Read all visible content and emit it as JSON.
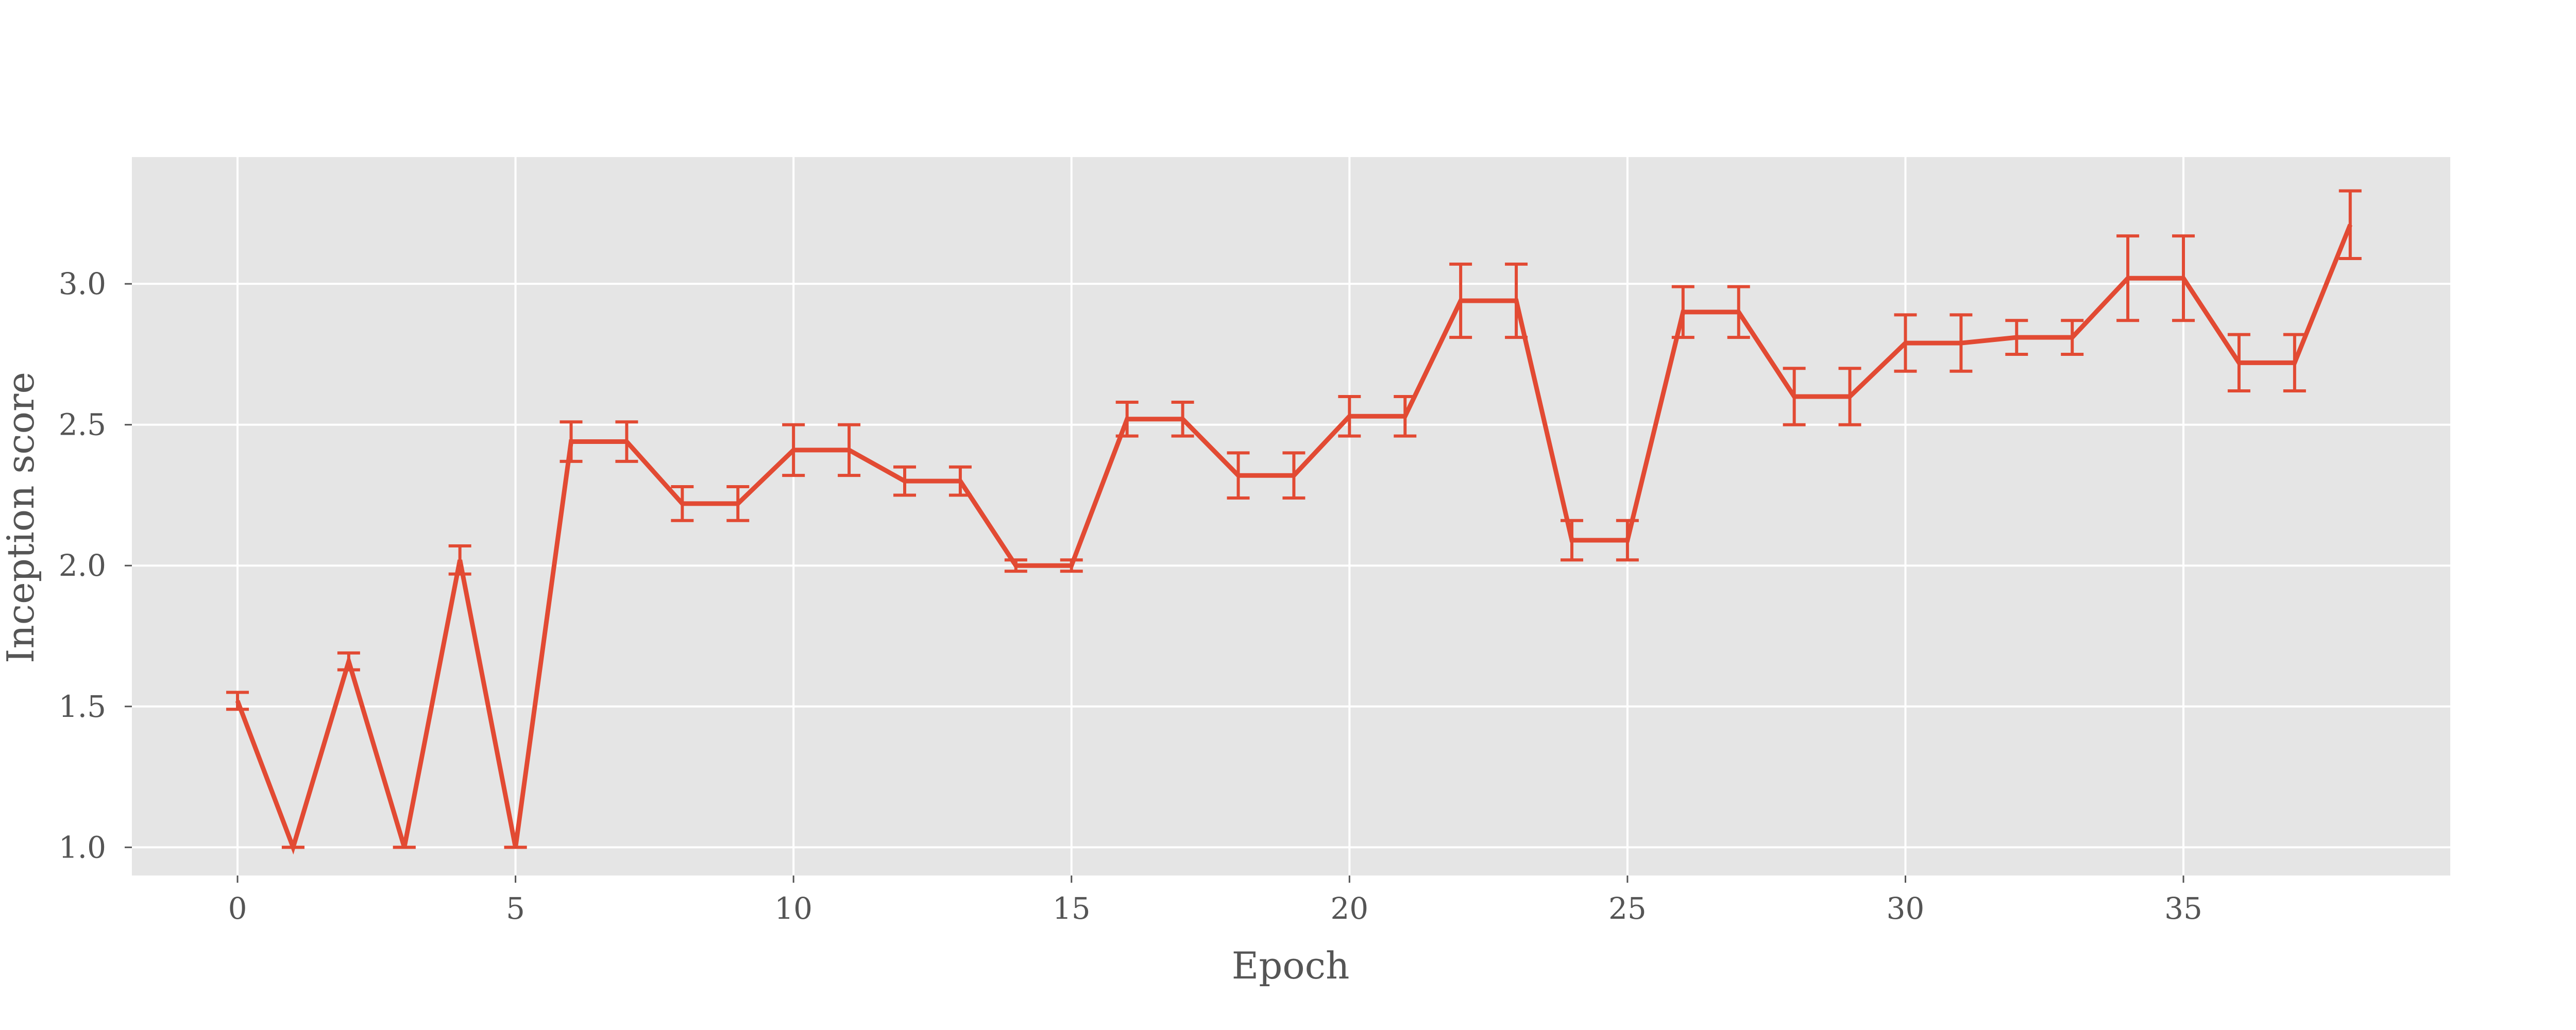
{
  "chart_data": {
    "type": "line",
    "title": "",
    "xlabel": "Epoch",
    "ylabel": "Inception score",
    "xlim": [
      -1.9,
      39.8
    ],
    "ylim": [
      0.9,
      3.45
    ],
    "xticks": [
      0,
      5,
      10,
      15,
      20,
      25,
      30,
      35
    ],
    "xtick_labels": [
      "0",
      "5",
      "10",
      "15",
      "20",
      "25",
      "30",
      "35"
    ],
    "yticks": [
      1.0,
      1.5,
      2.0,
      2.5,
      3.0
    ],
    "ytick_labels": [
      "1.0",
      "1.5",
      "2.0",
      "2.5",
      "3.0"
    ],
    "grid": true,
    "legend": "none",
    "colors": {
      "plot_background": "#e5e5e5",
      "grid": "#ffffff",
      "series": "#e24a33",
      "text": "#555555"
    },
    "series": [
      {
        "x": [
          0,
          1,
          2,
          3,
          4,
          5,
          6,
          7,
          8,
          9,
          10,
          11,
          12,
          13,
          14,
          15,
          16,
          17,
          18,
          19,
          20,
          21,
          22,
          23,
          24,
          25,
          26,
          27,
          28,
          29,
          30,
          31,
          32,
          33,
          34,
          35,
          36,
          37,
          38
        ],
        "y": [
          1.52,
          1.0,
          1.66,
          1.0,
          2.02,
          1.0,
          2.44,
          2.44,
          2.22,
          2.22,
          2.41,
          2.41,
          2.3,
          2.3,
          2.0,
          2.0,
          2.52,
          2.52,
          2.32,
          2.32,
          2.53,
          2.53,
          2.94,
          2.94,
          2.09,
          2.09,
          2.9,
          2.9,
          2.6,
          2.6,
          2.79,
          2.79,
          2.81,
          2.81,
          3.02,
          3.02,
          2.72,
          2.72,
          3.21
        ],
        "yerr": [
          0.03,
          0.0,
          0.03,
          0.0,
          0.05,
          0.0,
          0.07,
          0.07,
          0.06,
          0.06,
          0.09,
          0.09,
          0.05,
          0.05,
          0.02,
          0.02,
          0.06,
          0.06,
          0.08,
          0.08,
          0.07,
          0.07,
          0.13,
          0.13,
          0.07,
          0.07,
          0.09,
          0.09,
          0.1,
          0.1,
          0.1,
          0.1,
          0.06,
          0.06,
          0.15,
          0.15,
          0.1,
          0.1,
          0.12
        ]
      }
    ]
  }
}
